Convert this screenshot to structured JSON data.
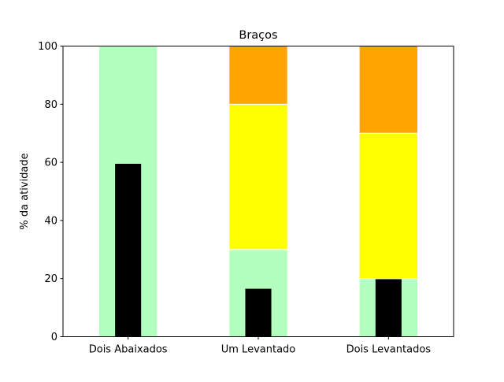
{
  "chart_data": {
    "type": "bar",
    "title": "Braços",
    "xlabel": "",
    "ylabel": "% da atividade",
    "ylim": [
      0,
      100
    ],
    "yticks": [
      0,
      20,
      40,
      60,
      80,
      100
    ],
    "categories": [
      "Dois Abaixados",
      "Um Levantado",
      "Dois Levantados"
    ],
    "stacked_series": [
      {
        "color": "#b3ffbe",
        "values": [
          100,
          30,
          20
        ]
      },
      {
        "color": "#ffff00",
        "values": [
          0,
          50,
          50
        ]
      },
      {
        "color": "#ffa500",
        "values": [
          0,
          20,
          30
        ]
      }
    ],
    "overlay_series": {
      "color": "#000000",
      "values": [
        59.5,
        16.5,
        19.8
      ]
    },
    "grid": false,
    "legend": "none"
  }
}
